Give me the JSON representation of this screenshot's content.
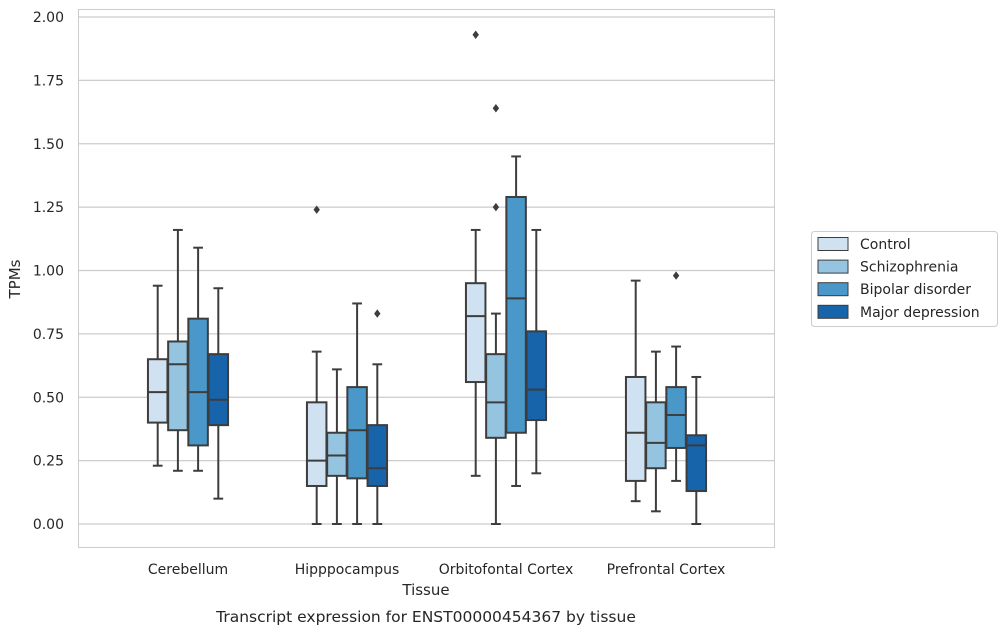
{
  "caption": "Transcript expression for ENST00000454367 by tissue",
  "chart_data": {
    "type": "boxplot",
    "title": "",
    "xlabel": "Tissue",
    "ylabel": "TPMs",
    "ylim": [
      -0.1,
      2.02
    ],
    "yticks": [
      "0.00",
      "0.25",
      "0.50",
      "0.75",
      "1.00",
      "1.25",
      "1.50",
      "1.75",
      "2.00"
    ],
    "ytick_values": [
      0,
      0.25,
      0.5,
      0.75,
      1.0,
      1.25,
      1.5,
      1.75,
      2.0
    ],
    "grid": "horizontal",
    "legend_position": "right",
    "categories": [
      "Cerebellum",
      "Hipppocampus",
      "Orbitofontal Cortex",
      "Prefrontal Cortex"
    ],
    "series": [
      {
        "name": "Control",
        "color": "#d0e1f2",
        "boxes": [
          {
            "whisker_low": 0.23,
            "q1": 0.4,
            "median": 0.52,
            "q3": 0.65,
            "whisker_high": 0.94,
            "outliers": []
          },
          {
            "whisker_low": 0.0,
            "q1": 0.15,
            "median": 0.25,
            "q3": 0.48,
            "whisker_high": 0.68,
            "outliers": [
              1.24
            ]
          },
          {
            "whisker_low": 0.19,
            "q1": 0.56,
            "median": 0.82,
            "q3": 0.95,
            "whisker_high": 1.16,
            "outliers": [
              1.93
            ]
          },
          {
            "whisker_low": 0.09,
            "q1": 0.17,
            "median": 0.36,
            "q3": 0.58,
            "whisker_high": 0.96,
            "outliers": []
          }
        ]
      },
      {
        "name": "Schizophrenia",
        "color": "#94c4df",
        "boxes": [
          {
            "whisker_low": 0.21,
            "q1": 0.37,
            "median": 0.63,
            "q3": 0.72,
            "whisker_high": 1.16,
            "outliers": []
          },
          {
            "whisker_low": 0.0,
            "q1": 0.19,
            "median": 0.27,
            "q3": 0.36,
            "whisker_high": 0.61,
            "outliers": []
          },
          {
            "whisker_low": 0.0,
            "q1": 0.34,
            "median": 0.48,
            "q3": 0.67,
            "whisker_high": 0.83,
            "outliers": [
              1.25,
              1.64
            ]
          },
          {
            "whisker_low": 0.05,
            "q1": 0.22,
            "median": 0.32,
            "q3": 0.48,
            "whisker_high": 0.68,
            "outliers": []
          }
        ]
      },
      {
        "name": "Bipolar disorder",
        "color": "#4a98c9",
        "boxes": [
          {
            "whisker_low": 0.21,
            "q1": 0.31,
            "median": 0.52,
            "q3": 0.81,
            "whisker_high": 1.09,
            "outliers": []
          },
          {
            "whisker_low": 0.0,
            "q1": 0.18,
            "median": 0.37,
            "q3": 0.54,
            "whisker_high": 0.87,
            "outliers": []
          },
          {
            "whisker_low": 0.15,
            "q1": 0.36,
            "median": 0.89,
            "q3": 1.29,
            "whisker_high": 1.45,
            "outliers": []
          },
          {
            "whisker_low": 0.17,
            "q1": 0.3,
            "median": 0.43,
            "q3": 0.54,
            "whisker_high": 0.7,
            "outliers": [
              0.98
            ]
          }
        ]
      },
      {
        "name": "Major depression",
        "color": "#1764ab",
        "boxes": [
          {
            "whisker_low": 0.1,
            "q1": 0.39,
            "median": 0.49,
            "q3": 0.67,
            "whisker_high": 0.93,
            "outliers": []
          },
          {
            "whisker_low": 0.0,
            "q1": 0.15,
            "median": 0.22,
            "q3": 0.39,
            "whisker_high": 0.63,
            "outliers": [
              0.83
            ]
          },
          {
            "whisker_low": 0.2,
            "q1": 0.41,
            "median": 0.53,
            "q3": 0.76,
            "whisker_high": 1.16,
            "outliers": []
          },
          {
            "whisker_low": 0.0,
            "q1": 0.13,
            "median": 0.31,
            "q3": 0.35,
            "whisker_high": 0.58,
            "outliers": []
          }
        ]
      }
    ],
    "colors": {
      "grid": "#cccccc",
      "frame": "#cccccc",
      "box_edge": "#3d3d3d",
      "outlier": "#3d3d3d"
    }
  }
}
